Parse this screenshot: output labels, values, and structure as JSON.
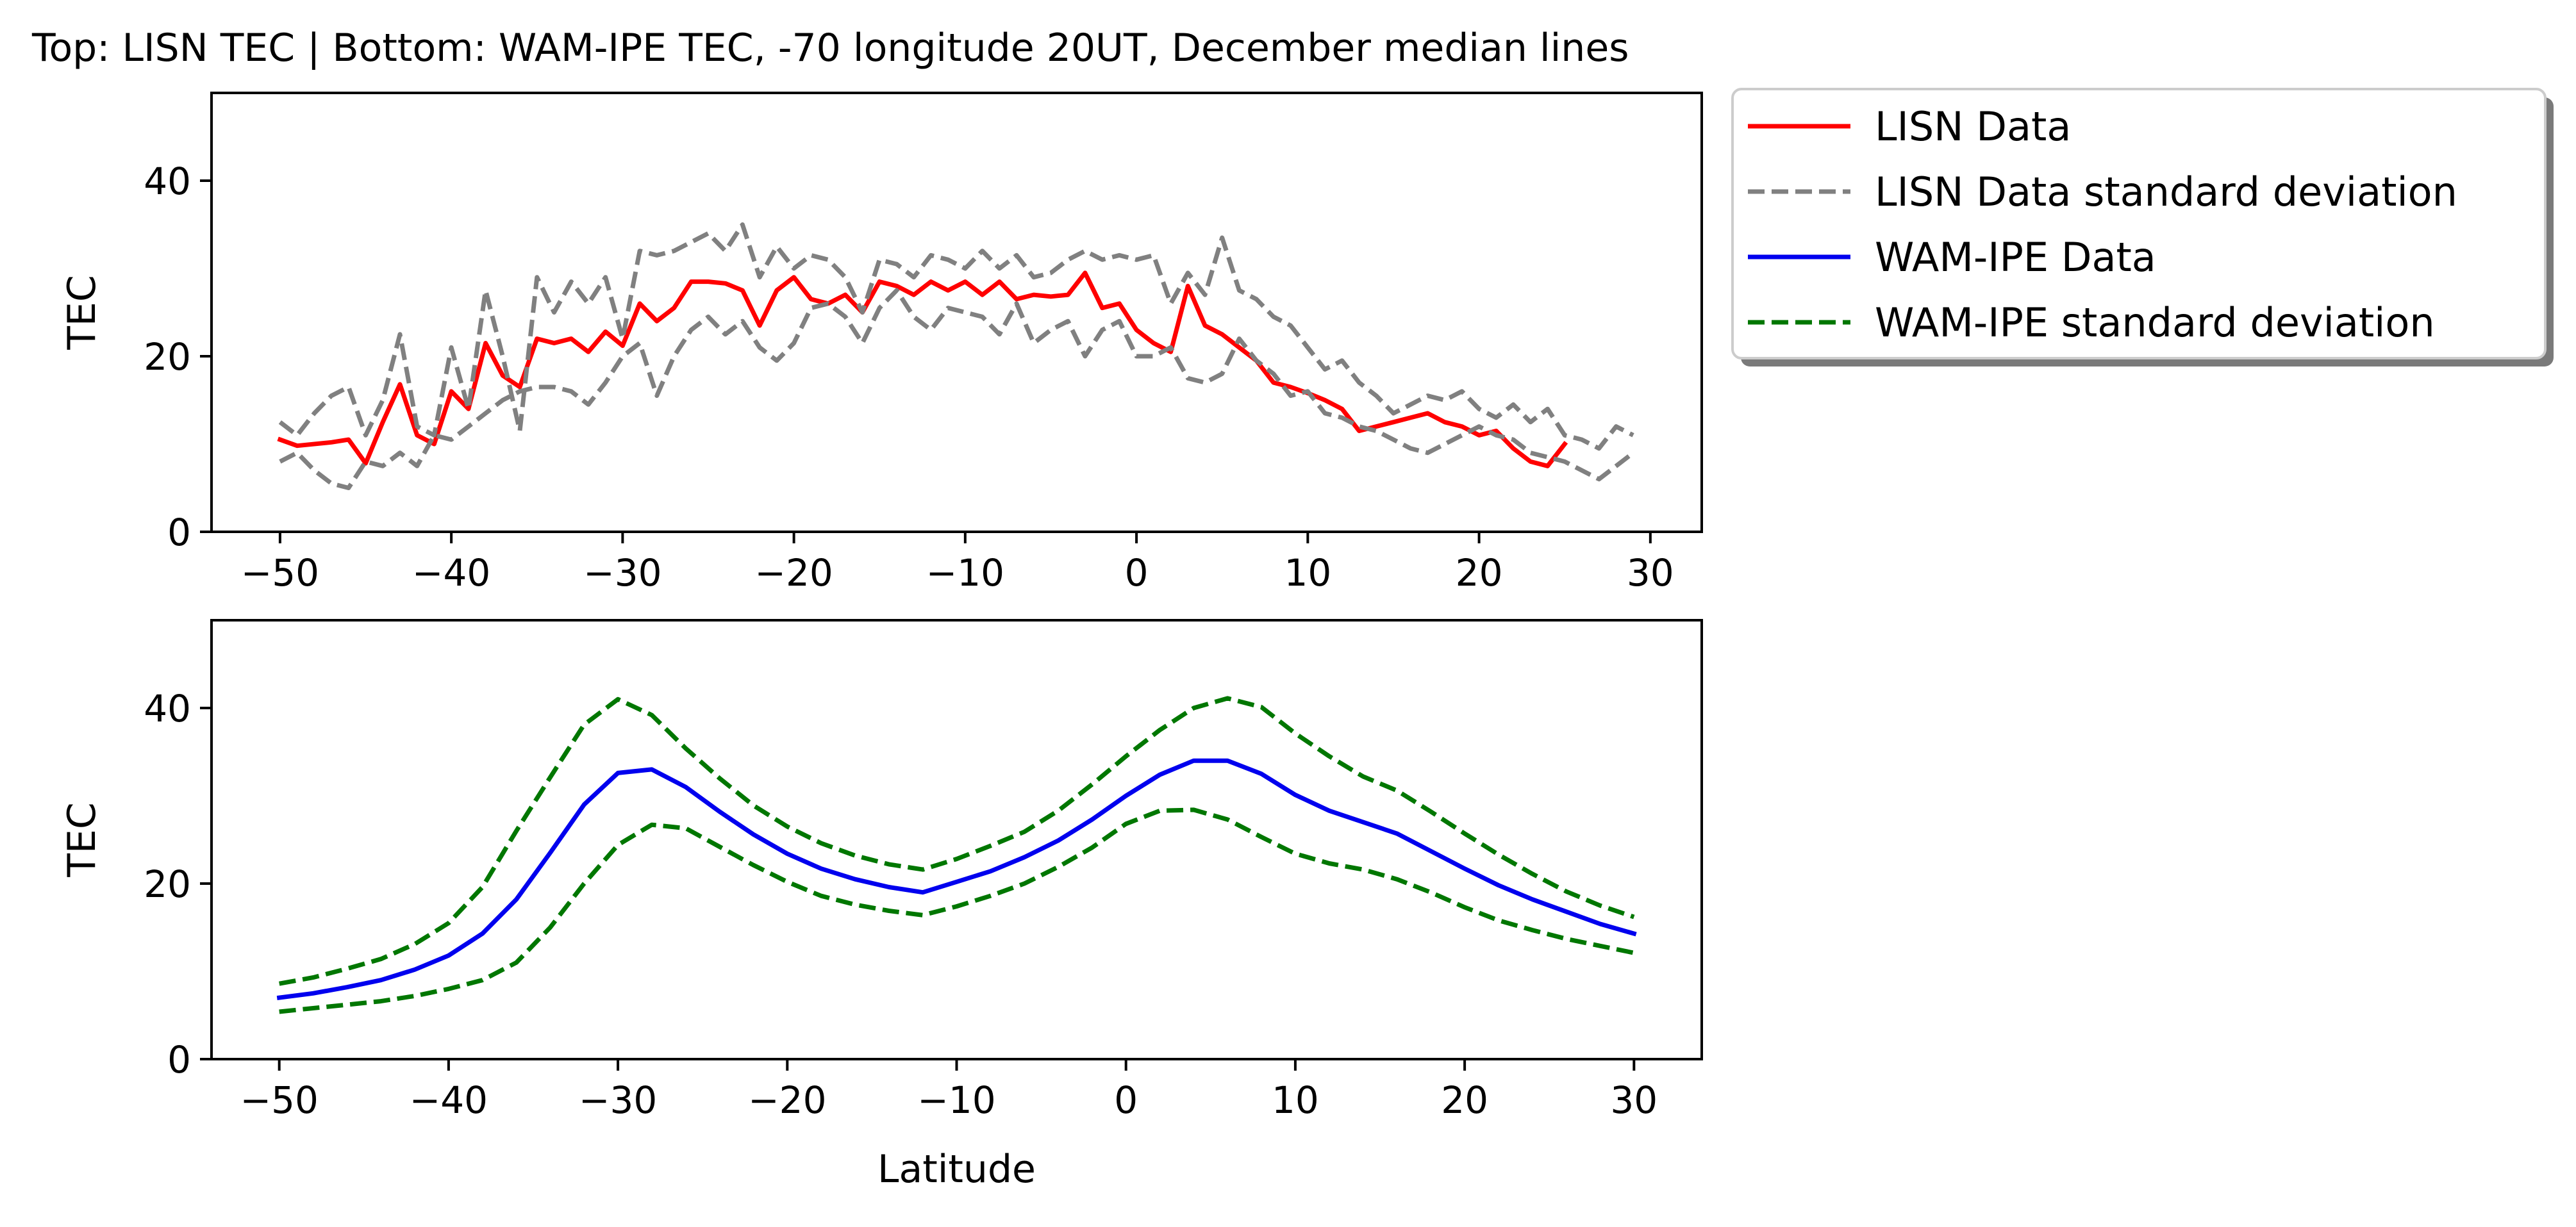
{
  "title": "Top: LISN TEC | Bottom: WAM-IPE TEC, -70 longitude 20UT, December median lines",
  "legend": {
    "placement": "outside-right-top",
    "entries": [
      {
        "label": "LISN Data",
        "color": "#ff0000",
        "dash": "solid"
      },
      {
        "label": "LISN Data standard deviation",
        "color": "#808080",
        "dash": "dashed"
      },
      {
        "label": "WAM-IPE Data",
        "color": "#0000ee",
        "dash": "solid"
      },
      {
        "label": "WAM-IPE standard deviation",
        "color": "#007700",
        "dash": "dashed"
      }
    ]
  },
  "chart_data": [
    {
      "type": "line",
      "panel": "top",
      "ylabel": "TEC",
      "xlabel": "",
      "xlim": [
        -54,
        33
      ],
      "ylim": [
        0,
        50
      ],
      "xticks": [
        "−50",
        "−40",
        "−30",
        "−20",
        "−10",
        "0",
        "10",
        "20",
        "30"
      ],
      "yticks": [
        "0",
        "20",
        "40"
      ],
      "grid": false,
      "series": [
        {
          "name": "LISN Data",
          "color": "#ff0000",
          "x": [
            -50,
            -49,
            -47,
            -46,
            -45,
            -44,
            -43,
            -42,
            -41,
            -40,
            -39,
            -38,
            -37,
            -36,
            -35,
            -34,
            -33,
            -32,
            -31,
            -30,
            -29,
            -28,
            -27,
            -26,
            -25,
            -24,
            -23,
            -22,
            -21,
            -20,
            -19,
            -18,
            -17,
            -16,
            -15,
            -14,
            -13,
            -12,
            -11,
            -10,
            -9,
            -8,
            -7,
            -6,
            -5,
            -4,
            -3,
            -2,
            -1,
            0,
            1,
            2,
            3,
            4,
            5,
            6,
            7,
            8,
            9,
            10,
            11,
            12,
            13,
            14,
            15,
            16,
            17,
            18,
            19,
            20,
            21,
            22,
            23,
            24,
            25
          ],
          "y": [
            10.5,
            9.8,
            10.2,
            10.5,
            7.8,
            12.5,
            16.8,
            11.0,
            10.0,
            16.0,
            14.0,
            21.5,
            17.8,
            16.5,
            22.0,
            21.5,
            22.0,
            20.5,
            22.8,
            21.2,
            26.0,
            24.0,
            25.5,
            28.5,
            28.5,
            28.3,
            27.5,
            23.5,
            27.5,
            29.0,
            26.5,
            26.0,
            27.0,
            25.0,
            28.5,
            28.0,
            27.0,
            28.5,
            27.5,
            28.5,
            27.0,
            28.5,
            26.5,
            27.0,
            26.8,
            27.0,
            29.5,
            25.5,
            26.0,
            23.0,
            21.5,
            20.5,
            28.0,
            23.5,
            22.5,
            21.0,
            19.5,
            17.0,
            16.5,
            15.8,
            15.0,
            14.0,
            11.5,
            12.0,
            12.5,
            13.0,
            13.5,
            12.5,
            12.0,
            11.0,
            11.5,
            9.5,
            8.0,
            7.5,
            10.0
          ]
        },
        {
          "name": "LISN Data standard deviation (upper)",
          "color": "#808080",
          "x": [
            -50,
            -49,
            -48,
            -47,
            -46,
            -45,
            -44,
            -43,
            -42,
            -41,
            -40,
            -39,
            -38,
            -37,
            -36,
            -35,
            -34,
            -33,
            -32,
            -31,
            -30,
            -29,
            -28,
            -27,
            -26,
            -25,
            -24,
            -23,
            -22,
            -21,
            -20,
            -19,
            -18,
            -17,
            -16,
            -15,
            -14,
            -13,
            -12,
            -11,
            -10,
            -9,
            -8,
            -7,
            -6,
            -5,
            -4,
            -3,
            -2,
            -1,
            0,
            1,
            2,
            3,
            4,
            5,
            6,
            7,
            8,
            9,
            10,
            11,
            12,
            13,
            14,
            15,
            16,
            17,
            18,
            19,
            20,
            21,
            22,
            23,
            24,
            25,
            26,
            27,
            28,
            29
          ],
          "y": [
            12.5,
            11.0,
            13.5,
            15.5,
            16.5,
            11.0,
            15.0,
            22.5,
            12.0,
            11.0,
            21.0,
            14.0,
            27.5,
            20.0,
            11.5,
            29.0,
            25.0,
            28.5,
            26.0,
            29.0,
            22.0,
            32.0,
            31.5,
            32.0,
            33.0,
            34.0,
            32.0,
            35.0,
            29.0,
            32.5,
            30.0,
            31.5,
            31.0,
            29.0,
            25.0,
            31.0,
            30.5,
            29.0,
            31.5,
            31.0,
            30.0,
            32.0,
            30.0,
            31.5,
            29.0,
            29.5,
            31.0,
            32.0,
            31.0,
            31.5,
            31.0,
            31.5,
            26.0,
            29.5,
            27.0,
            33.5,
            27.5,
            26.5,
            24.5,
            23.5,
            21.0,
            18.5,
            19.5,
            17.0,
            15.5,
            13.5,
            14.5,
            15.5,
            15.0,
            16.0,
            14.0,
            13.0,
            14.5,
            12.5,
            14.0,
            11.0,
            10.5,
            9.5,
            12.0,
            11.0
          ]
        },
        {
          "name": "LISN Data standard deviation (lower)",
          "color": "#808080",
          "x": [
            -50,
            -49,
            -48,
            -47,
            -46,
            -45,
            -44,
            -43,
            -42,
            -41,
            -40,
            -39,
            -38,
            -37,
            -36,
            -35,
            -34,
            -33,
            -32,
            -31,
            -30,
            -29,
            -28,
            -27,
            -26,
            -25,
            -24,
            -23,
            -22,
            -21,
            -20,
            -19,
            -18,
            -17,
            -16,
            -15,
            -14,
            -13,
            -12,
            -11,
            -10,
            -9,
            -8,
            -7,
            -6,
            -5,
            -4,
            -3,
            -2,
            -1,
            0,
            1,
            2,
            3,
            4,
            5,
            6,
            7,
            8,
            9,
            10,
            11,
            12,
            13,
            14,
            15,
            16,
            17,
            18,
            19,
            20,
            21,
            22,
            23,
            24,
            25,
            26,
            27,
            28,
            29
          ],
          "y": [
            8.0,
            9.0,
            7.0,
            5.5,
            5.0,
            8.0,
            7.5,
            9.0,
            7.5,
            11.0,
            10.5,
            12.0,
            13.5,
            15.0,
            16.0,
            16.5,
            16.5,
            16.0,
            14.5,
            17.0,
            20.0,
            21.5,
            15.5,
            20.0,
            23.0,
            24.5,
            22.5,
            24.0,
            21.0,
            19.5,
            21.5,
            25.5,
            26.0,
            24.5,
            21.5,
            25.5,
            27.5,
            24.5,
            23.0,
            25.5,
            25.0,
            24.5,
            22.5,
            26.0,
            21.5,
            23.0,
            24.0,
            20.0,
            23.0,
            24.0,
            20.0,
            20.0,
            21.0,
            17.5,
            17.0,
            18.0,
            22.0,
            19.5,
            18.0,
            15.5,
            16.0,
            13.5,
            13.0,
            12.0,
            11.5,
            10.5,
            9.5,
            9.0,
            10.0,
            11.0,
            12.0,
            11.0,
            10.5,
            9.0,
            8.5,
            8.0,
            7.0,
            6.0,
            7.5,
            9.0
          ]
        }
      ]
    },
    {
      "type": "line",
      "panel": "bottom",
      "ylabel": "TEC",
      "xlabel": "Latitude",
      "xlim": [
        -54,
        34
      ],
      "ylim": [
        0,
        50
      ],
      "xticks": [
        "−50",
        "−40",
        "−30",
        "−20",
        "−10",
        "0",
        "10",
        "20",
        "30"
      ],
      "yticks": [
        "0",
        "20",
        "40"
      ],
      "grid": false,
      "series": [
        {
          "name": "WAM-IPE Data",
          "color": "#0000ee",
          "x": [
            -50,
            -48,
            -46,
            -44,
            -42,
            -40,
            -38,
            -36,
            -34,
            -32,
            -30,
            -28,
            -26,
            -24,
            -22,
            -20,
            -18,
            -16,
            -14,
            -12,
            -10,
            -8,
            -6,
            -4,
            -2,
            0,
            2,
            4,
            6,
            8,
            10,
            12,
            14,
            16,
            18,
            20,
            22,
            24,
            26,
            28,
            30
          ],
          "y": [
            7.0,
            7.5,
            8.2,
            9.0,
            10.2,
            11.8,
            14.3,
            18.2,
            23.5,
            29.0,
            32.6,
            33.0,
            31.0,
            28.2,
            25.6,
            23.4,
            21.7,
            20.5,
            19.6,
            19.0,
            20.2,
            21.4,
            23.0,
            24.9,
            27.3,
            30.0,
            32.4,
            34.0,
            34.0,
            32.5,
            30.1,
            28.3,
            27.0,
            25.7,
            23.7,
            21.7,
            19.8,
            18.2,
            16.8,
            15.4,
            14.3
          ]
        },
        {
          "name": "WAM-IPE standard deviation (upper)",
          "color": "#007700",
          "x": [
            -50,
            -48,
            -46,
            -44,
            -42,
            -40,
            -38,
            -36,
            -34,
            -32,
            -30,
            -28,
            -26,
            -24,
            -22,
            -20,
            -18,
            -16,
            -14,
            -12,
            -10,
            -8,
            -6,
            -4,
            -2,
            0,
            2,
            4,
            6,
            8,
            10,
            12,
            14,
            16,
            18,
            20,
            22,
            24,
            26,
            28,
            30
          ],
          "y": [
            8.6,
            9.3,
            10.3,
            11.4,
            13.1,
            15.5,
            19.6,
            26.0,
            32.1,
            38.1,
            41.0,
            39.2,
            35.4,
            32.0,
            28.9,
            26.5,
            24.6,
            23.2,
            22.2,
            21.6,
            22.8,
            24.3,
            25.9,
            28.3,
            31.3,
            34.5,
            37.5,
            40.0,
            41.1,
            40.1,
            37.1,
            34.5,
            32.2,
            30.6,
            28.2,
            25.7,
            23.3,
            21.1,
            19.1,
            17.5,
            16.2
          ]
        },
        {
          "name": "WAM-IPE standard deviation (lower)",
          "color": "#007700",
          "x": [
            -50,
            -48,
            -46,
            -44,
            -42,
            -40,
            -38,
            -36,
            -34,
            -32,
            -30,
            -28,
            -26,
            -24,
            -22,
            -20,
            -18,
            -16,
            -14,
            -12,
            -10,
            -8,
            -6,
            -4,
            -2,
            0,
            2,
            4,
            6,
            8,
            10,
            12,
            14,
            16,
            18,
            20,
            22,
            24,
            26,
            28,
            30
          ],
          "y": [
            5.4,
            5.8,
            6.2,
            6.6,
            7.2,
            8.0,
            9.0,
            11.0,
            15.0,
            20.0,
            24.4,
            26.7,
            26.3,
            24.2,
            22.1,
            20.2,
            18.6,
            17.6,
            16.9,
            16.4,
            17.4,
            18.6,
            20.0,
            21.9,
            24.1,
            26.8,
            28.3,
            28.4,
            27.3,
            25.3,
            23.4,
            22.3,
            21.6,
            20.5,
            19.0,
            17.3,
            15.8,
            14.7,
            13.7,
            12.9,
            12.1
          ]
        }
      ]
    }
  ]
}
